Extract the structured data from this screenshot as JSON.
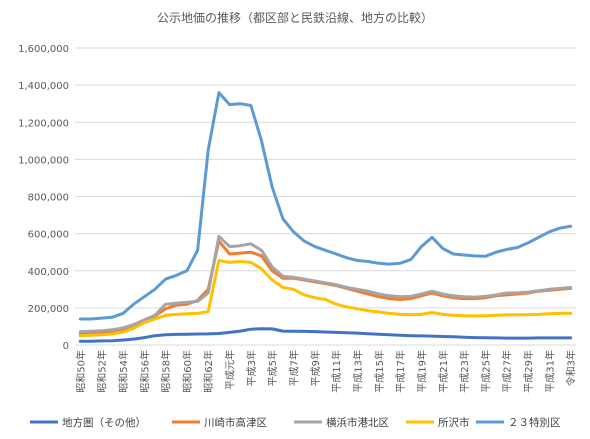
{
  "chart_data": {
    "type": "line",
    "title": "公示地価の推移（都区部と民鉄沿線、地方の比較）",
    "xlabel": "",
    "ylabel": "",
    "ylim": [
      0,
      1600000
    ],
    "yticks": [
      0,
      200000,
      400000,
      600000,
      800000,
      1000000,
      1200000,
      1400000,
      1600000
    ],
    "ytick_labels": [
      "0",
      "200,000",
      "400,000",
      "600,000",
      "800,000",
      "1,000,000",
      "1,200,000",
      "1,400,000",
      "1,600,000"
    ],
    "grid": true,
    "legend_position": "bottom",
    "categories": [
      "昭和50年",
      "昭和51年",
      "昭和52年",
      "昭和53年",
      "昭和54年",
      "昭和55年",
      "昭和56年",
      "昭和57年",
      "昭和58年",
      "昭和59年",
      "昭和60年",
      "昭和61年",
      "昭和62年",
      "昭和63年",
      "平成元年",
      "平成2年",
      "平成3年",
      "平成4年",
      "平成5年",
      "平成6年",
      "平成7年",
      "平成8年",
      "平成9年",
      "平成10年",
      "平成11年",
      "平成12年",
      "平成13年",
      "平成14年",
      "平成15年",
      "平成16年",
      "平成17年",
      "平成18年",
      "平成19年",
      "平成20年",
      "平成21年",
      "平成22年",
      "平成23年",
      "平成24年",
      "平成25年",
      "平成26年",
      "平成27年",
      "平成28年",
      "平成29年",
      "平成30年",
      "平成31年",
      "令和2年",
      "令和3年"
    ],
    "tick_labels": [
      "昭和50年",
      "昭和52年",
      "昭和54年",
      "昭和56年",
      "昭和58年",
      "昭和60年",
      "昭和62年",
      "平成元年",
      "平成3年",
      "平成5年",
      "平成7年",
      "平成9年",
      "平成11年",
      "平成13年",
      "平成15年",
      "平成17年",
      "平成19年",
      "平成21年",
      "平成23年",
      "平成25年",
      "平成27年",
      "平成29年",
      "平成31年",
      "令和3年"
    ],
    "series": [
      {
        "name": "地方圏（その他）",
        "color": "#4472c4",
        "values": [
          20000,
          20000,
          22000,
          23000,
          27000,
          32000,
          40000,
          50000,
          55000,
          57000,
          58000,
          59000,
          60000,
          62000,
          68000,
          75000,
          85000,
          88000,
          87000,
          75000,
          74000,
          73000,
          72000,
          70000,
          68000,
          66000,
          64000,
          61000,
          58000,
          55000,
          52000,
          50000,
          49000,
          48000,
          46000,
          44000,
          42000,
          40000,
          39000,
          38000,
          37000,
          37000,
          37000,
          38000,
          38000,
          38000,
          38000
        ]
      },
      {
        "name": "川崎市高津区",
        "color": "#ed7d31",
        "values": [
          60000,
          62000,
          65000,
          70000,
          80000,
          100000,
          130000,
          155000,
          195000,
          215000,
          220000,
          240000,
          300000,
          560000,
          490000,
          495000,
          500000,
          480000,
          400000,
          360000,
          360000,
          350000,
          340000,
          330000,
          320000,
          305000,
          290000,
          275000,
          260000,
          250000,
          245000,
          250000,
          265000,
          280000,
          265000,
          255000,
          250000,
          250000,
          255000,
          265000,
          270000,
          275000,
          280000,
          290000,
          295000,
          300000,
          305000
        ]
      },
      {
        "name": "横浜市港北区",
        "color": "#a5a5a5",
        "values": [
          72000,
          74000,
          77000,
          82000,
          92000,
          110000,
          135000,
          160000,
          220000,
          225000,
          230000,
          235000,
          280000,
          585000,
          530000,
          535000,
          545000,
          510000,
          420000,
          370000,
          365000,
          355000,
          345000,
          335000,
          325000,
          310000,
          300000,
          290000,
          275000,
          265000,
          260000,
          262000,
          275000,
          290000,
          275000,
          265000,
          260000,
          258000,
          262000,
          270000,
          280000,
          282000,
          285000,
          292000,
          300000,
          305000,
          310000
        ]
      },
      {
        "name": "所沢市",
        "color": "#ffc000",
        "values": [
          50000,
          52000,
          55000,
          60000,
          70000,
          90000,
          120000,
          140000,
          160000,
          165000,
          168000,
          170000,
          180000,
          455000,
          445000,
          450000,
          445000,
          410000,
          350000,
          310000,
          300000,
          270000,
          255000,
          245000,
          220000,
          205000,
          195000,
          185000,
          178000,
          170000,
          165000,
          163000,
          165000,
          175000,
          165000,
          160000,
          158000,
          157000,
          158000,
          160000,
          162000,
          163000,
          163000,
          165000,
          168000,
          170000,
          170000
        ]
      },
      {
        "name": "２３特別区",
        "color": "#5b9bd5",
        "values": [
          140000,
          140000,
          145000,
          150000,
          170000,
          220000,
          260000,
          300000,
          355000,
          375000,
          400000,
          510000,
          1050000,
          1360000,
          1295000,
          1300000,
          1290000,
          1100000,
          850000,
          680000,
          610000,
          560000,
          530000,
          510000,
          490000,
          470000,
          455000,
          450000,
          440000,
          436000,
          440000,
          460000,
          530000,
          580000,
          520000,
          490000,
          485000,
          480000,
          478000,
          500000,
          515000,
          525000,
          550000,
          580000,
          610000,
          630000,
          640000
        ]
      }
    ]
  }
}
